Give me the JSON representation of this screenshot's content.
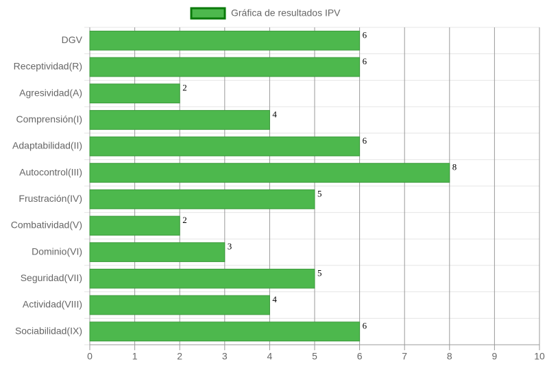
{
  "chart_data": {
    "type": "bar",
    "orientation": "horizontal",
    "categories": [
      "DGV",
      "Receptividad(R)",
      "Agresividad(A)",
      "Comprensión(I)",
      "Adaptabilidad(II)",
      "Autocontrol(III)",
      "Frustración(IV)",
      "Combatividad(V)",
      "Dominio(VI)",
      "Seguridad(VII)",
      "Actividad(VIII)",
      "Sociabilidad(IX)"
    ],
    "series": [
      {
        "name": "Gráfica de resultados IPV",
        "color": "#4db84d",
        "values": [
          6,
          6,
          2,
          4,
          6,
          8,
          5,
          2,
          3,
          5,
          4,
          6
        ]
      }
    ],
    "xlim": [
      0,
      10
    ],
    "xticks": [
      0,
      1,
      2,
      3,
      4,
      5,
      6,
      7,
      8,
      9,
      10
    ],
    "grid": true,
    "legend": "top"
  }
}
